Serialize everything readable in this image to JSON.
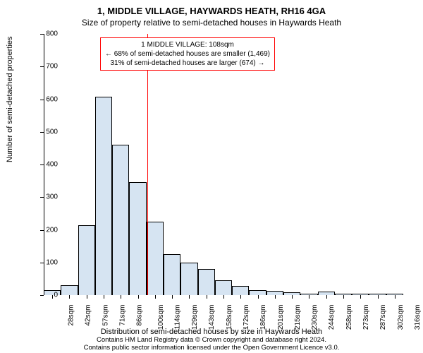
{
  "titles": {
    "main": "1, MIDDLE VILLAGE, HAYWARDS HEATH, RH16 4GA",
    "sub": "Size of property relative to semi-detached houses in Haywards Heath"
  },
  "axes": {
    "ylabel": "Number of semi-detached properties",
    "xlabel": "Distribution of semi-detached houses by size in Haywards Heath",
    "ylim": [
      0,
      800
    ],
    "yticks": [
      0,
      100,
      200,
      300,
      400,
      500,
      600,
      700,
      800
    ],
    "label_fontsize": 11,
    "tick_fontsize": 10,
    "axis_color": "#000000"
  },
  "chart": {
    "type": "histogram",
    "bar_color": "#d6e4f2",
    "bar_border_color": "#000000",
    "bar_border_width": 0.5,
    "background_color": "#ffffff",
    "categories": [
      "28sqm",
      "42sqm",
      "57sqm",
      "71sqm",
      "86sqm",
      "100sqm",
      "114sqm",
      "129sqm",
      "143sqm",
      "158sqm",
      "172sqm",
      "186sqm",
      "201sqm",
      "215sqm",
      "230sqm",
      "244sqm",
      "258sqm",
      "273sqm",
      "287sqm",
      "302sqm",
      "316sqm"
    ],
    "values": [
      15,
      30,
      215,
      608,
      460,
      345,
      225,
      125,
      100,
      80,
      45,
      28,
      15,
      12,
      8,
      5,
      10,
      5,
      5,
      5,
      5
    ]
  },
  "reference": {
    "value_sqm": 108,
    "line_color": "#ff0000",
    "line_width": 1
  },
  "annotation": {
    "border_color": "#ff0000",
    "background": "#ffffff",
    "fontsize": 10,
    "line1": "1 MIDDLE VILLAGE: 108sqm",
    "line2": "← 68% of semi-detached houses are smaller (1,469)",
    "line3": "31% of semi-detached houses are larger (674) →"
  },
  "attribution": {
    "line1": "Contains HM Land Registry data © Crown copyright and database right 2024.",
    "line2": "Contains public sector information licensed under the Open Government Licence v3.0.",
    "fontsize": 9.5
  }
}
